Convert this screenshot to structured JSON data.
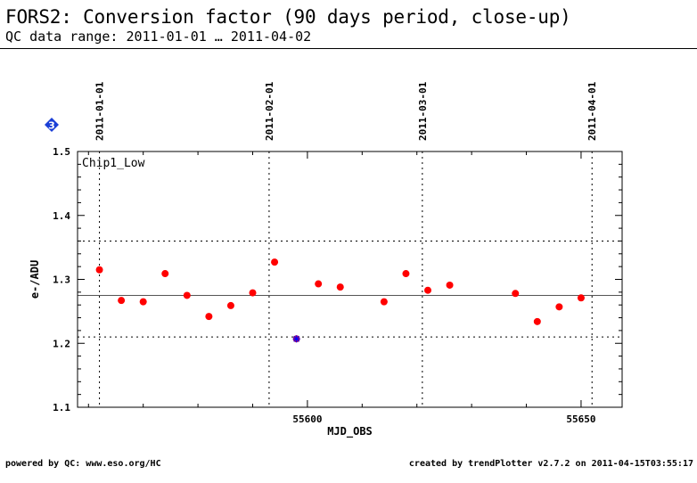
{
  "header": {
    "title": "FORS2: Conversion factor (90 days period, close-up)",
    "subtitle": "QC data range: 2011-01-01 … 2011-04-02"
  },
  "badge": {
    "label": "3",
    "color": "#1a3fd6"
  },
  "footer": {
    "left": "powered by QC: www.eso.org/HC",
    "right": "created by trendPlotter v2.7.2 on 2011-04-15T03:55:17"
  },
  "colors": {
    "point": "#ff0000",
    "outlier": "#b01060",
    "outlier_mark": "#0000ff"
  },
  "chart_data": {
    "type": "scatter",
    "panel_label": "Chip1_Low",
    "xlabel": "MJD_OBS",
    "ylabel": "e-/ADU",
    "xlim": [
      55558,
      55657.5
    ],
    "ylim": [
      1.1,
      1.5
    ],
    "x_ticks": [
      55600,
      55650
    ],
    "y_ticks": [
      1.1,
      1.2,
      1.3,
      1.4,
      1.5
    ],
    "date_markers": [
      {
        "label": "2011-01-01",
        "mjd": 55562
      },
      {
        "label": "2011-02-01",
        "mjd": 55593
      },
      {
        "label": "2011-03-01",
        "mjd": 55621
      },
      {
        "label": "2011-04-01",
        "mjd": 55652
      }
    ],
    "mean_line": 1.275,
    "limit_lines": [
      1.21,
      1.36
    ],
    "points": [
      {
        "x": 55562,
        "y": 1.315
      },
      {
        "x": 55566,
        "y": 1.267
      },
      {
        "x": 55570,
        "y": 1.265
      },
      {
        "x": 55574,
        "y": 1.309
      },
      {
        "x": 55578,
        "y": 1.275
      },
      {
        "x": 55582,
        "y": 1.242
      },
      {
        "x": 55586,
        "y": 1.259
      },
      {
        "x": 55590,
        "y": 1.279
      },
      {
        "x": 55594,
        "y": 1.327
      },
      {
        "x": 55598,
        "y": 1.207,
        "outlier": true
      },
      {
        "x": 55602,
        "y": 1.293
      },
      {
        "x": 55606,
        "y": 1.288
      },
      {
        "x": 55614,
        "y": 1.265
      },
      {
        "x": 55618,
        "y": 1.309
      },
      {
        "x": 55622,
        "y": 1.283
      },
      {
        "x": 55626,
        "y": 1.291
      },
      {
        "x": 55638,
        "y": 1.278
      },
      {
        "x": 55642,
        "y": 1.234
      },
      {
        "x": 55646,
        "y": 1.257
      },
      {
        "x": 55650,
        "y": 1.271
      }
    ]
  }
}
